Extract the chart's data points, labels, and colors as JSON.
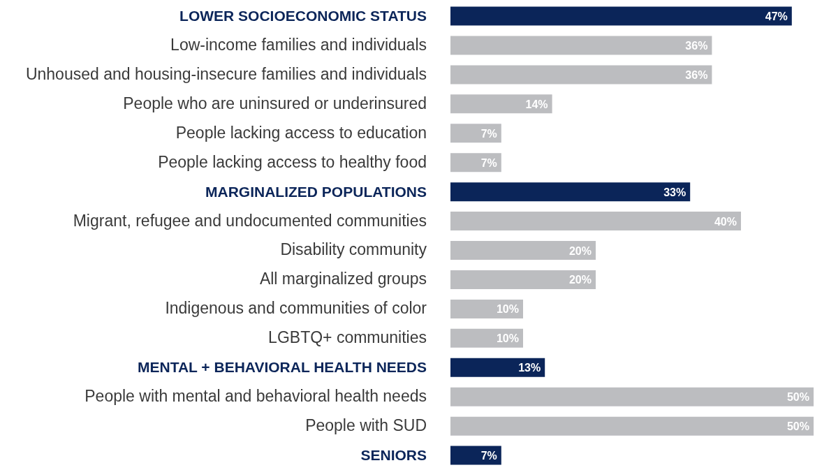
{
  "chart_data": {
    "type": "bar",
    "orientation": "horizontal",
    "value_labels": [
      "47%",
      "36%",
      "36%",
      "14%",
      "7%",
      "7%",
      "33%",
      "40%",
      "20%",
      "20%",
      "10%",
      "10%",
      "13%",
      "50%",
      "50%",
      "7%"
    ],
    "categories": [
      "LOWER SOCIOECONOMIC STATUS",
      "Low-income families and individuals",
      "Unhoused and housing-insecure families and individuals",
      "People who are uninsured or underinsured",
      "People lacking access to education",
      "People lacking access to healthy food",
      "MARGINALIZED POPULATIONS",
      "Migrant, refugee and undocumented communities",
      "Disability community",
      "All marginalized groups",
      "Indigenous and communities of color",
      "LGBTQ+ communities",
      "MENTAL + BEHAVIORAL HEALTH NEEDS",
      "People with  mental and behavioral health needs",
      "People with SUD",
      "SENIORS"
    ],
    "values": [
      47,
      36,
      36,
      14,
      7,
      7,
      33,
      40,
      20,
      20,
      10,
      10,
      13,
      50,
      50,
      7
    ],
    "colors": [
      "#0b2559",
      "#bcbdc0",
      "#bcbdc0",
      "#bcbdc0",
      "#bcbdc0",
      "#bcbdc0",
      "#0b2559",
      "#bcbdc0",
      "#bcbdc0",
      "#bcbdc0",
      "#bcbdc0",
      "#bcbdc0",
      "#0b2559",
      "#bcbdc0",
      "#bcbdc0",
      "#0b2559"
    ]
  }
}
